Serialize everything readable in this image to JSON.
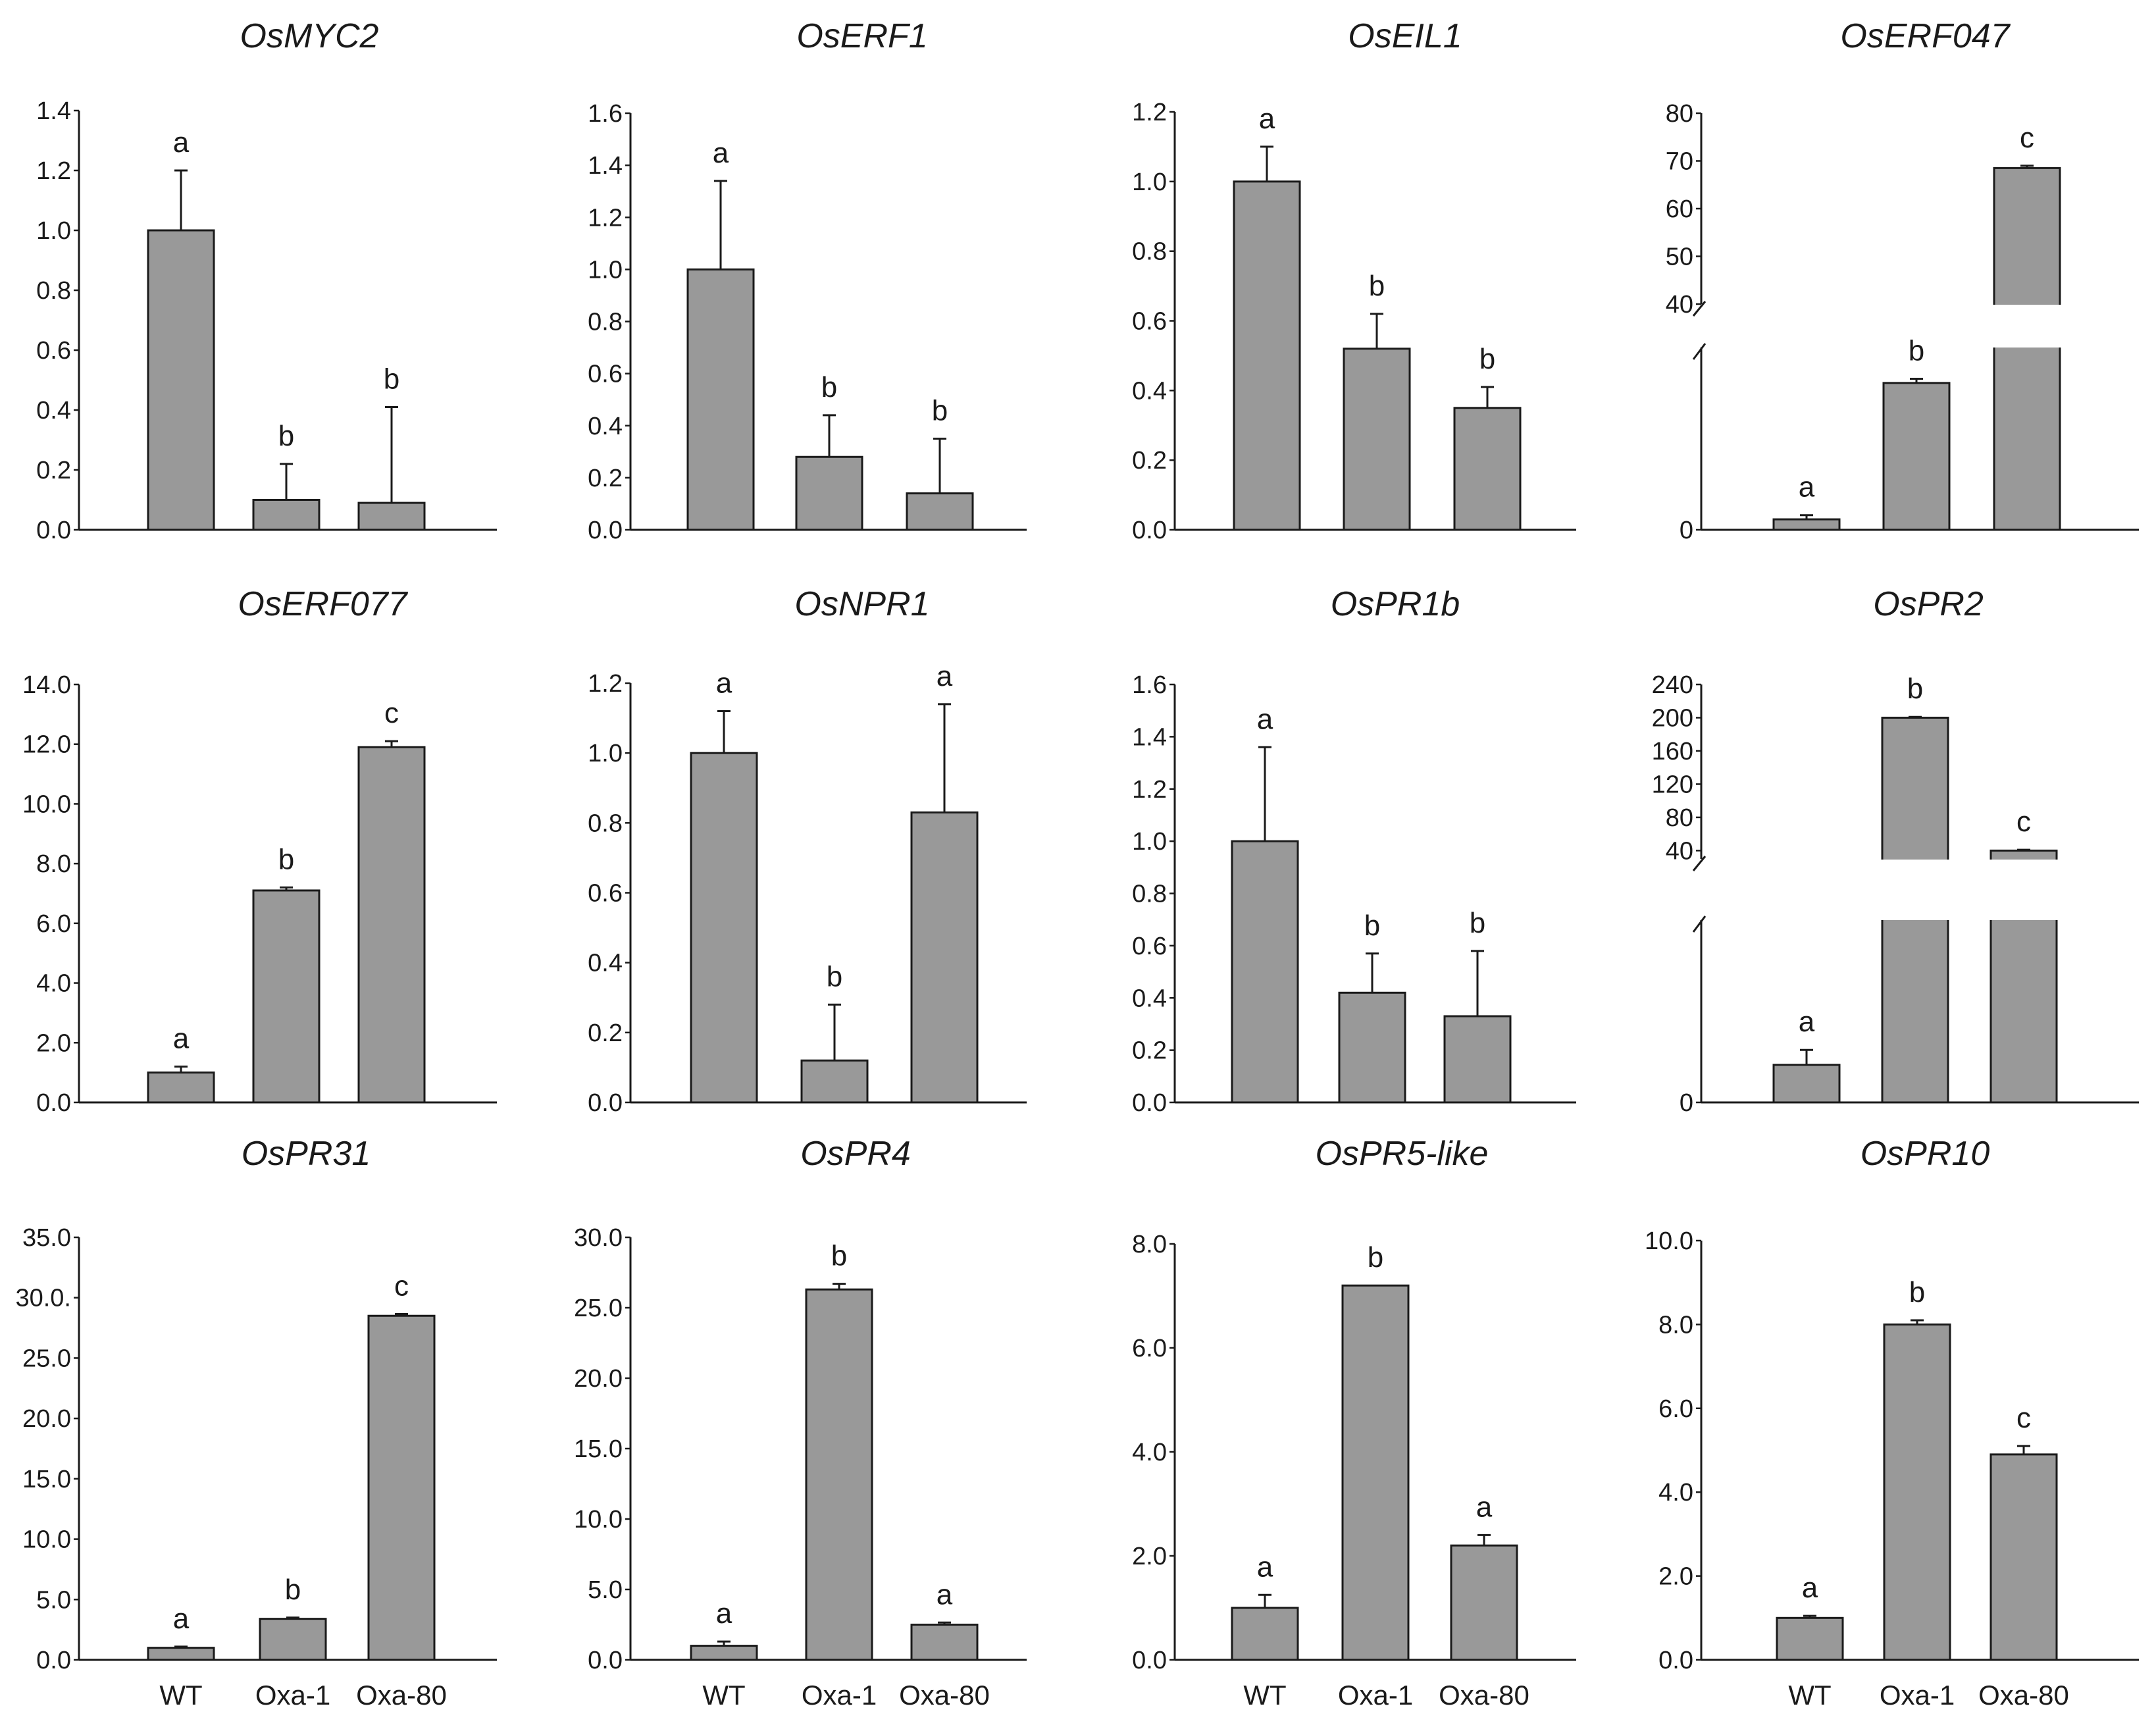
{
  "chart_data": [
    {
      "type": "bar",
      "title": "OsMYC2",
      "categories": [
        "WT",
        "Oxa-1",
        "Oxa-80"
      ],
      "values": [
        1.0,
        0.1,
        0.09
      ],
      "errors": [
        0.2,
        0.12,
        0.32
      ],
      "labels": [
        "a",
        "b",
        "b"
      ],
      "ylim": [
        0,
        1.4
      ],
      "yticks": [
        "0.0",
        "0.2",
        "0.4",
        "0.6",
        "0.8",
        "1.0",
        "1.2",
        "1.4"
      ]
    },
    {
      "type": "bar",
      "title": "OsERF1",
      "categories": [
        "WT",
        "Oxa-1",
        "Oxa-80"
      ],
      "values": [
        1.0,
        0.28,
        0.14
      ],
      "errors": [
        0.34,
        0.16,
        0.21
      ],
      "labels": [
        "a",
        "b",
        "b"
      ],
      "ylim": [
        0,
        1.6
      ],
      "yticks": [
        "0.0",
        "0.2",
        "0.4",
        "0.6",
        "0.8",
        "1.0",
        "1.2",
        "1.4",
        "1.6"
      ]
    },
    {
      "type": "bar",
      "title": "OsEIL1",
      "categories": [
        "WT",
        "Oxa-1",
        "Oxa-80"
      ],
      "values": [
        1.0,
        0.52,
        0.35
      ],
      "errors": [
        0.1,
        0.1,
        0.06
      ],
      "labels": [
        "a",
        "b",
        "b"
      ],
      "ylim": [
        0,
        1.2
      ],
      "yticks": [
        "0.0",
        "0.2",
        "0.4",
        "0.6",
        "0.8",
        "1.0",
        "1.2"
      ]
    },
    {
      "type": "bar",
      "title": "OsERF047",
      "categories": [
        "WT",
        "Oxa-1",
        "Oxa-80"
      ],
      "values": [
        1.0,
        14.0,
        68.5
      ],
      "errors": [
        0.4,
        0.4,
        0.5
      ],
      "labels": [
        "a",
        "b",
        "c"
      ],
      "ylim": [
        0,
        80
      ],
      "yticks": [
        "0",
        "40",
        "50",
        "60",
        "70",
        "80"
      ],
      "broken_axis": {
        "lower": [
          0,
          16
        ],
        "upper": [
          40,
          80
        ]
      }
    },
    {
      "type": "bar",
      "title": "OsERF077",
      "categories": [
        "WT",
        "Oxa-1",
        "Oxa-80"
      ],
      "values": [
        1.0,
        7.1,
        11.9
      ],
      "errors": [
        0.2,
        0.1,
        0.2
      ],
      "labels": [
        "a",
        "b",
        "c"
      ],
      "ylim": [
        0,
        14
      ],
      "yticks": [
        "0.0",
        "2.0",
        "4.0",
        "6.0",
        "8.0",
        "10.0",
        "12.0",
        "14.0"
      ]
    },
    {
      "type": "bar",
      "title": "OsNPR1",
      "categories": [
        "WT",
        "Oxa-1",
        "Oxa-80"
      ],
      "values": [
        1.0,
        0.12,
        0.83
      ],
      "errors": [
        0.12,
        0.16,
        0.31
      ],
      "labels": [
        "a",
        "b",
        "a"
      ],
      "ylim": [
        0,
        1.2
      ],
      "yticks": [
        "0.0",
        "0.2",
        "0.4",
        "0.6",
        "0.8",
        "1.0",
        "1.2"
      ]
    },
    {
      "type": "bar",
      "title": "OsPR1b",
      "categories": [
        "WT",
        "Oxa-1",
        "Oxa-80"
      ],
      "values": [
        1.0,
        0.42,
        0.33
      ],
      "errors": [
        0.36,
        0.15,
        0.25
      ],
      "labels": [
        "a",
        "b",
        "b"
      ],
      "ylim": [
        0,
        1.6
      ],
      "yticks": [
        "0.0",
        "0.2",
        "0.4",
        "0.6",
        "0.8",
        "1.0",
        "1.2",
        "1.4",
        "1.6"
      ]
    },
    {
      "type": "bar",
      "title": "OsPR2",
      "categories": [
        "WT",
        "Oxa-1",
        "Oxa-80"
      ],
      "values": [
        1.0,
        200,
        40
      ],
      "errors": [
        0.4,
        1.0,
        1.0
      ],
      "labels": [
        "a",
        "b",
        "c"
      ],
      "ylim": [
        0,
        240
      ],
      "yticks": [
        "0",
        "40",
        "80",
        "120",
        "160",
        "200",
        "240"
      ],
      "broken_axis": {
        "lower": [
          0,
          5
        ],
        "upper": [
          30,
          240
        ]
      }
    },
    {
      "type": "bar",
      "title": "OsPR31",
      "categories": [
        "WT",
        "Oxa-1",
        "Oxa-80"
      ],
      "values": [
        1.0,
        3.4,
        28.5
      ],
      "errors": [
        0.1,
        0.1,
        0.15
      ],
      "labels": [
        "a",
        "b",
        "c"
      ],
      "ylim": [
        0,
        35
      ],
      "yticks": [
        "0.0",
        "5.0",
        "10.0",
        "15.0",
        "20.0",
        "25.0",
        "30.0.",
        "35.0"
      ]
    },
    {
      "type": "bar",
      "title": "OsPR4",
      "categories": [
        "WT",
        "Oxa-1",
        "Oxa-80"
      ],
      "values": [
        1.0,
        26.3,
        2.5
      ],
      "errors": [
        0.3,
        0.4,
        0.15
      ],
      "labels": [
        "a",
        "b",
        "a"
      ],
      "ylim": [
        0,
        30
      ],
      "yticks": [
        "0.0",
        "5.0",
        "10.0",
        "15.0",
        "20.0",
        "25.0",
        "30.0"
      ]
    },
    {
      "type": "bar",
      "title": "OsPR5-like",
      "categories": [
        "WT",
        "Oxa-1",
        "Oxa-80"
      ],
      "values": [
        1.0,
        7.2,
        2.2
      ],
      "errors": [
        0.25,
        0.0,
        0.2
      ],
      "labels": [
        "a",
        "b",
        "a"
      ],
      "ylim": [
        0,
        8
      ],
      "yticks": [
        "0.0",
        "2.0",
        "4.0",
        "6.0",
        "8.0"
      ]
    },
    {
      "type": "bar",
      "title": "OsPR10",
      "categories": [
        "WT",
        "Oxa-1",
        "Oxa-80"
      ],
      "values": [
        1.0,
        8.0,
        4.9
      ],
      "errors": [
        0.05,
        0.1,
        0.2
      ],
      "labels": [
        "a",
        "b",
        "c"
      ],
      "ylim": [
        0,
        10
      ],
      "yticks": [
        "0.0",
        "2.0",
        "4.0",
        "6.0",
        "8.0",
        "10.0"
      ]
    }
  ]
}
